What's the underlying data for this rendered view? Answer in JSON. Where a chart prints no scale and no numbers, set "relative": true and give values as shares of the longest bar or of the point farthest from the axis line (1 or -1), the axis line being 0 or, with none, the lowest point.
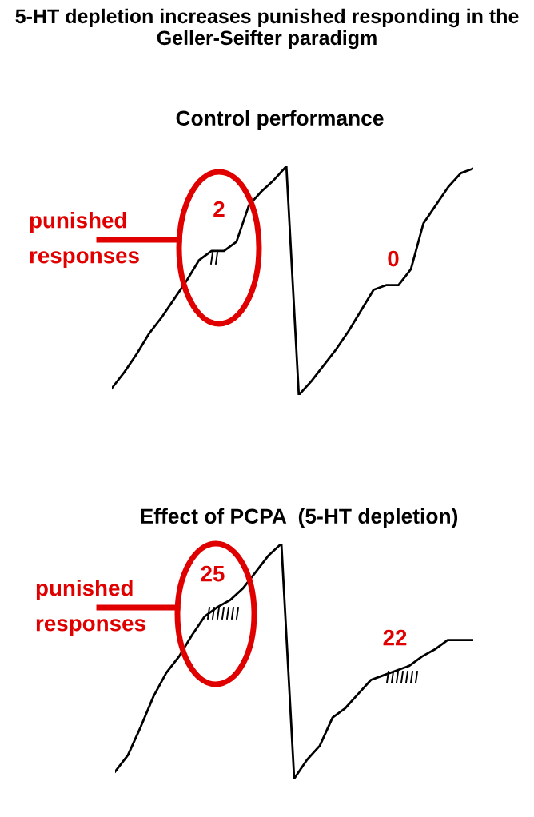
{
  "chart_data": [
    {
      "type": "line",
      "title": "Control performance",
      "relative": true,
      "line_style": "solid",
      "categories": [
        null,
        null,
        null,
        null,
        null,
        null,
        null,
        null,
        null,
        null,
        null,
        null,
        null,
        null,
        null,
        null,
        null,
        null,
        null,
        null,
        null,
        null,
        null,
        null,
        null,
        null,
        null,
        null,
        null,
        null
      ],
      "series": [
        {
          "color": "#000000",
          "values": [
            0.03,
            0.1,
            0.18,
            0.27,
            0.34,
            0.42,
            0.5,
            0.59,
            0.63,
            0.63,
            0.67,
            0.83,
            0.89,
            0.94,
            1.0,
            0,
            0.06,
            0.13,
            0.2,
            0.28,
            0.37,
            0.46,
            0.48,
            0.48,
            0.55,
            0.75,
            0.83,
            0.91,
            0.97,
            0.99
          ]
        }
      ],
      "annotations": [
        "5-HT depletion increases punished responding in the Geller-Seifter paradigm",
        "punished responses",
        "2",
        "0"
      ]
    },
    {
      "type": "line",
      "title": "Effect of PCPA  (5-HT depletion)",
      "relative": true,
      "line_style": "solid",
      "categories": [
        null,
        null,
        null,
        null,
        null,
        null,
        null,
        null,
        null,
        null,
        null,
        null,
        null,
        null,
        null,
        null,
        null,
        null,
        null,
        null,
        null,
        null,
        null,
        null,
        null,
        null,
        null,
        null,
        null
      ],
      "series": [
        {
          "color": "#000000",
          "values": [
            0.03,
            0.1,
            0.22,
            0.35,
            0.45,
            0.52,
            0.61,
            0.69,
            0.73,
            0.76,
            0.81,
            0.88,
            0.95,
            1.0,
            0,
            0.08,
            0.14,
            0.26,
            0.3,
            0.36,
            0.42,
            0.44,
            0.46,
            0.48,
            0.52,
            0.55,
            0.59,
            0.59,
            0.59
          ]
        }
      ],
      "annotations": [
        "punished responses",
        "25",
        "22"
      ]
    }
  ]
}
